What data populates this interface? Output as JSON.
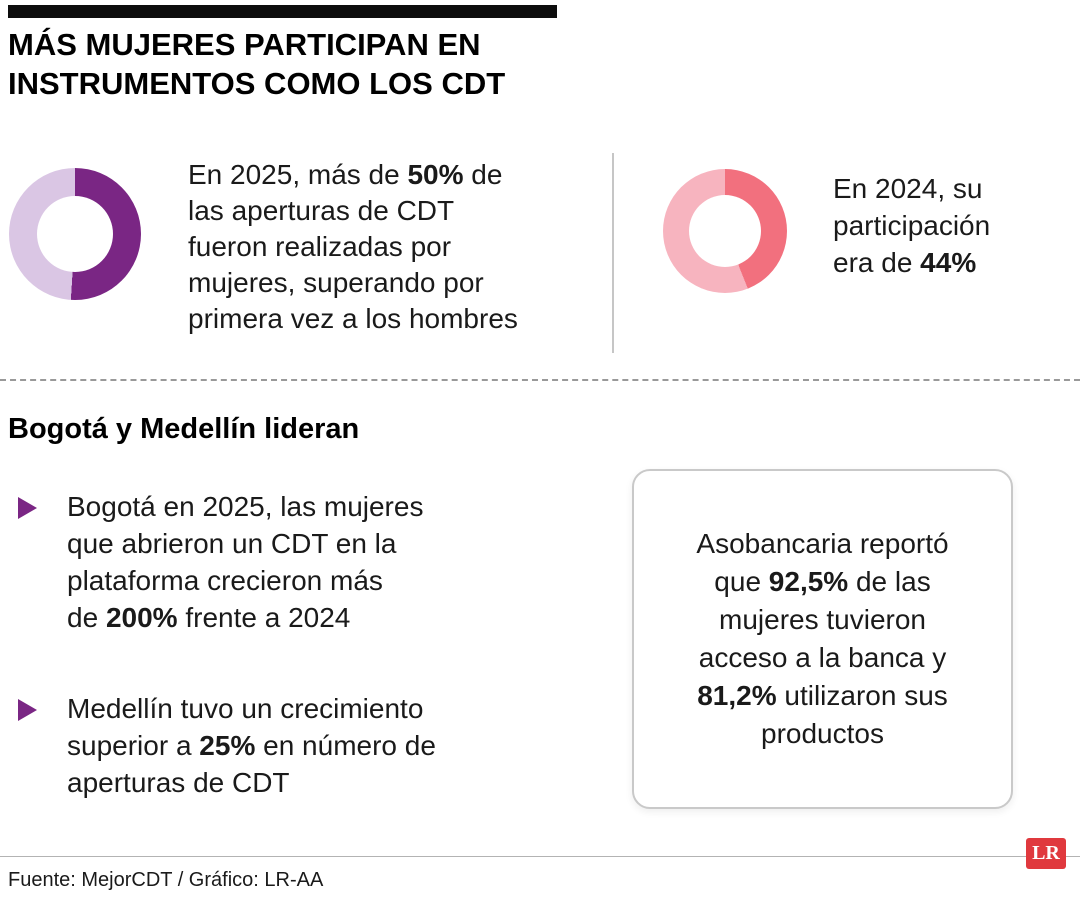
{
  "header": {
    "title_line1": "MÁS MUJERES PARTICIPAN EN",
    "title_line2": "INSTRUMENTOS COMO LOS CDT"
  },
  "stat_2025": {
    "lines": [
      [
        {
          "t": "En 2025, más de "
        },
        {
          "t": "50%",
          "b": true
        },
        {
          "t": " de"
        }
      ],
      [
        {
          "t": "las aperturas de CDT"
        }
      ],
      [
        {
          "t": "fueron realizadas por"
        }
      ],
      [
        {
          "t": "mujeres, superando por"
        }
      ],
      [
        {
          "t": "primera vez a los hombres"
        }
      ]
    ]
  },
  "stat_2024": {
    "lines": [
      [
        {
          "t": "En 2024, su"
        }
      ],
      [
        {
          "t": "participación"
        }
      ],
      [
        {
          "t": "era de "
        },
        {
          "t": "44%",
          "b": true
        }
      ]
    ]
  },
  "section": {
    "heading": "Bogotá y Medellín lideran",
    "bullets": [
      {
        "lines": [
          [
            {
              "t": "Bogotá en 2025, las mujeres"
            }
          ],
          [
            {
              "t": "que abrieron un CDT en la"
            }
          ],
          [
            {
              "t": "plataforma crecieron más"
            }
          ],
          [
            {
              "t": "de "
            },
            {
              "t": "200%",
              "b": true
            },
            {
              "t": " frente a 2024"
            }
          ]
        ]
      },
      {
        "lines": [
          [
            {
              "t": "Medellín tuvo un crecimiento"
            }
          ],
          [
            {
              "t": "superior a "
            },
            {
              "t": "25%",
              "b": true
            },
            {
              "t": " en número de"
            }
          ],
          [
            {
              "t": "aperturas de CDT"
            }
          ]
        ]
      }
    ]
  },
  "card": {
    "lines": [
      [
        {
          "t": "Asobancaria reportó"
        }
      ],
      [
        {
          "t": "que "
        },
        {
          "t": "92,5%",
          "b": true
        },
        {
          "t": " de las"
        }
      ],
      [
        {
          "t": "mujeres tuvieron"
        }
      ],
      [
        {
          "t": "acceso a la banca y"
        }
      ],
      [
        {
          "t": "81,2%",
          "b": true
        },
        {
          "t": " utilizaron sus"
        }
      ],
      [
        {
          "t": "productos"
        }
      ]
    ]
  },
  "footer": {
    "source": "Fuente: MejorCDT / Gráfico: LR-AA",
    "logo": "LR"
  },
  "colors": {
    "purple_dark": "#7a2684",
    "purple_light": "#dac6e4",
    "pink_dark": "#f2707e",
    "pink_light": "#f7b4bf",
    "logo_red": "#e0393e",
    "accent_black": "#0d0d0d"
  },
  "chart_data": [
    {
      "type": "pie",
      "subtype": "donut",
      "year": "2025",
      "slices": [
        {
          "label": "Mujeres",
          "value": 51,
          "color": "#7a2684"
        },
        {
          "label": "Hombres",
          "value": 49,
          "color": "#dac6e4"
        }
      ],
      "caption": "En 2025, más de 50% de las aperturas de CDT fueron realizadas por mujeres, superando por primera vez a los hombres"
    },
    {
      "type": "pie",
      "subtype": "donut",
      "year": "2024",
      "slices": [
        {
          "label": "Mujeres",
          "value": 44,
          "color": "#f2707e"
        },
        {
          "label": "Hombres",
          "value": 56,
          "color": "#f7b4bf"
        }
      ],
      "caption": "En 2024, su participación era de 44%"
    }
  ]
}
